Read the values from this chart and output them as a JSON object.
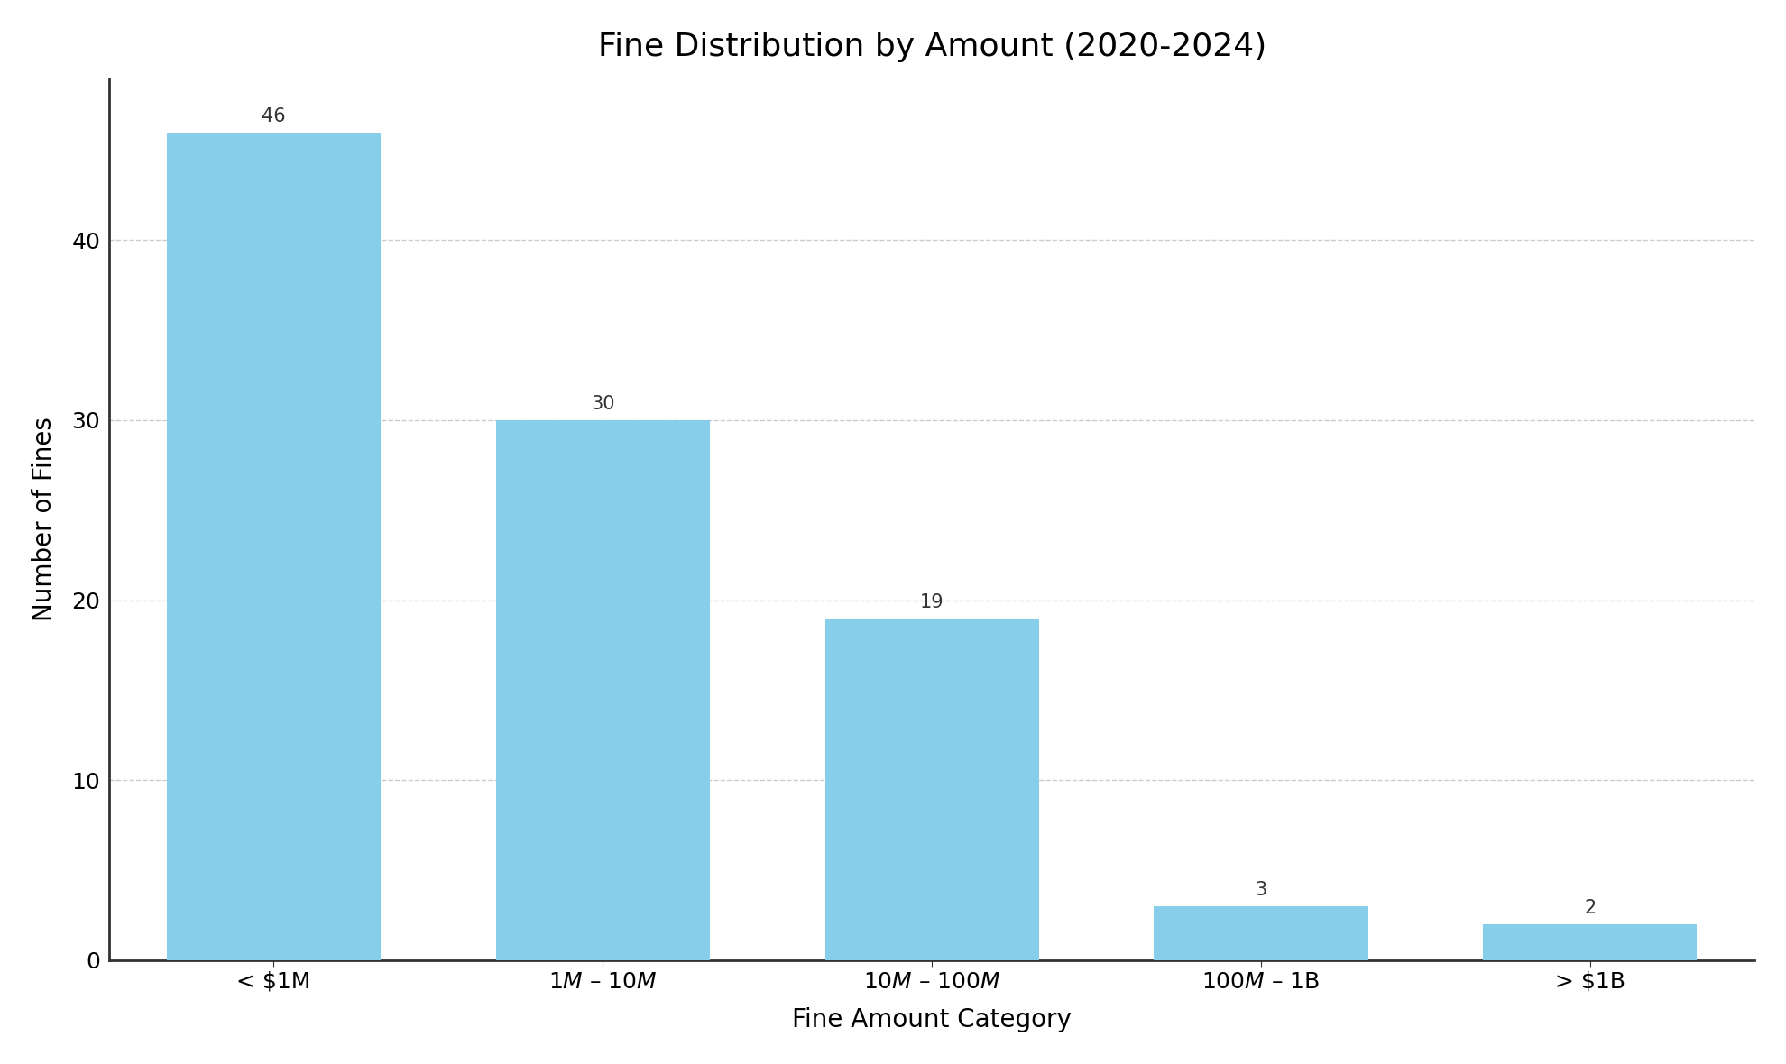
{
  "title": "Fine Distribution by Amount (2020-2024)",
  "categories": [
    "< $1M",
    "1$M$ – 10$M$",
    "10$M$ – 100$M$",
    "100$M$ – 1B",
    "> $1B"
  ],
  "values": [
    46,
    30,
    19,
    3,
    2
  ],
  "bar_color": "#87CEEB",
  "xlabel": "Fine Amount Category",
  "ylabel": "Number of Fines",
  "ylim": [
    0,
    49
  ],
  "yticks": [
    0,
    10,
    20,
    30,
    40
  ],
  "title_fontsize": 26,
  "label_fontsize": 20,
  "tick_fontsize": 18,
  "annotation_fontsize": 15,
  "background_color": "#ffffff",
  "grid_color": "#cccccc",
  "bar_width": 0.65
}
